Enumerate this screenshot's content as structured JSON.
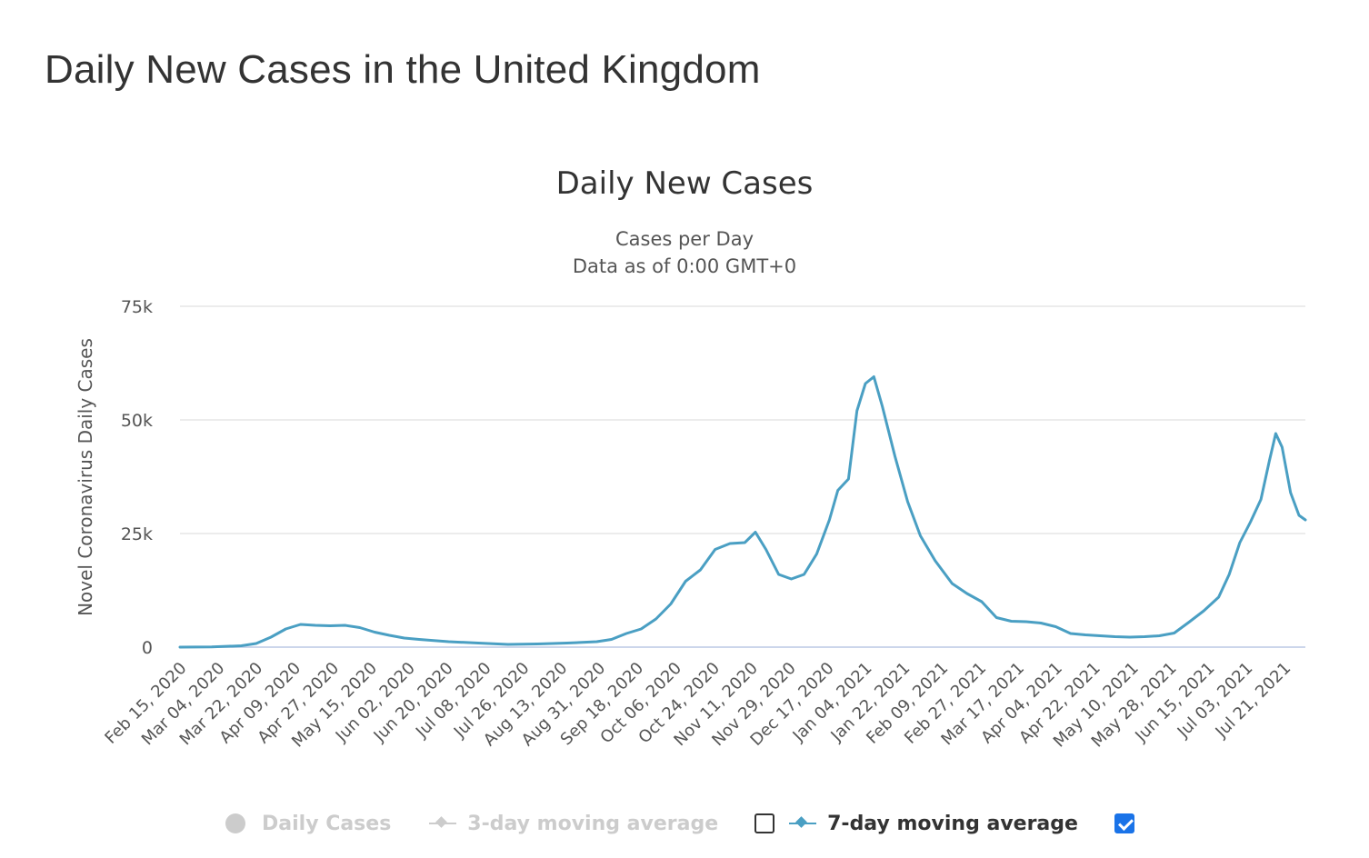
{
  "page": {
    "title": "Daily New Cases in the United Kingdom"
  },
  "chart_data": {
    "type": "line",
    "title": "Daily New Cases",
    "subtitle_lines": [
      "Cases per Day",
      "Data as of 0:00 GMT+0"
    ],
    "ylabel": "Novel Coronavirus Daily Cases",
    "xlabel": "",
    "ylim": [
      0,
      75000
    ],
    "y_ticks": [
      0,
      25000,
      50000,
      75000
    ],
    "y_tick_labels": [
      "0",
      "25k",
      "50k",
      "75k"
    ],
    "x_start": "2020-02-15",
    "x_end": "2021-07-31",
    "x_tick_labels": [
      "Feb 15, 2020",
      "Mar 04, 2020",
      "Mar 22, 2020",
      "Apr 09, 2020",
      "Apr 27, 2020",
      "May 15, 2020",
      "Jun 02, 2020",
      "Jun 20, 2020",
      "Jul 08, 2020",
      "Jul 26, 2020",
      "Aug 13, 2020",
      "Aug 31, 2020",
      "Sep 18, 2020",
      "Oct 06, 2020",
      "Oct 24, 2020",
      "Nov 11, 2020",
      "Nov 29, 2020",
      "Dec 17, 2020",
      "Jan 04, 2021",
      "Jan 22, 2021",
      "Feb 09, 2021",
      "Feb 27, 2021",
      "Mar 17, 2021",
      "Apr 04, 2021",
      "Apr 22, 2021",
      "May 10, 2021",
      "May 28, 2021",
      "Jun 15, 2021",
      "Jul 03, 2021",
      "Jul 21, 2021"
    ],
    "grid": true,
    "legend_position": "bottom",
    "series": [
      {
        "name": "7-day moving average",
        "color": "#4a9fc3",
        "points": [
          [
            "2020-02-15",
            0
          ],
          [
            "2020-03-01",
            50
          ],
          [
            "2020-03-15",
            300
          ],
          [
            "2020-03-22",
            800
          ],
          [
            "2020-03-29",
            2200
          ],
          [
            "2020-04-05",
            4000
          ],
          [
            "2020-04-12",
            5000
          ],
          [
            "2020-04-19",
            4800
          ],
          [
            "2020-04-26",
            4700
          ],
          [
            "2020-05-03",
            4800
          ],
          [
            "2020-05-10",
            4300
          ],
          [
            "2020-05-17",
            3300
          ],
          [
            "2020-05-24",
            2600
          ],
          [
            "2020-05-31",
            2000
          ],
          [
            "2020-06-07",
            1700
          ],
          [
            "2020-06-21",
            1200
          ],
          [
            "2020-07-05",
            900
          ],
          [
            "2020-07-19",
            600
          ],
          [
            "2020-08-02",
            700
          ],
          [
            "2020-08-16",
            900
          ],
          [
            "2020-08-30",
            1200
          ],
          [
            "2020-09-06",
            1700
          ],
          [
            "2020-09-13",
            3000
          ],
          [
            "2020-09-20",
            4000
          ],
          [
            "2020-09-27",
            6200
          ],
          [
            "2020-10-04",
            9500
          ],
          [
            "2020-10-11",
            14500
          ],
          [
            "2020-10-18",
            17000
          ],
          [
            "2020-10-25",
            21500
          ],
          [
            "2020-11-01",
            22800
          ],
          [
            "2020-11-08",
            23000
          ],
          [
            "2020-11-13",
            25300
          ],
          [
            "2020-11-18",
            21500
          ],
          [
            "2020-11-24",
            16000
          ],
          [
            "2020-11-30",
            15000
          ],
          [
            "2020-12-06",
            16000
          ],
          [
            "2020-12-12",
            20500
          ],
          [
            "2020-12-18",
            28000
          ],
          [
            "2020-12-22",
            34500
          ],
          [
            "2020-12-27",
            37000
          ],
          [
            "2020-12-31",
            52000
          ],
          [
            "2021-01-04",
            58000
          ],
          [
            "2021-01-08",
            59500
          ],
          [
            "2021-01-12",
            53000
          ],
          [
            "2021-01-18",
            42000
          ],
          [
            "2021-01-24",
            32000
          ],
          [
            "2021-01-30",
            24500
          ],
          [
            "2021-02-06",
            19000
          ],
          [
            "2021-02-14",
            14000
          ],
          [
            "2021-02-21",
            11800
          ],
          [
            "2021-02-28",
            10000
          ],
          [
            "2021-03-07",
            6500
          ],
          [
            "2021-03-14",
            5700
          ],
          [
            "2021-03-21",
            5600
          ],
          [
            "2021-03-28",
            5300
          ],
          [
            "2021-04-04",
            4500
          ],
          [
            "2021-04-11",
            3000
          ],
          [
            "2021-04-18",
            2700
          ],
          [
            "2021-04-25",
            2500
          ],
          [
            "2021-05-02",
            2300
          ],
          [
            "2021-05-09",
            2200
          ],
          [
            "2021-05-16",
            2300
          ],
          [
            "2021-05-23",
            2500
          ],
          [
            "2021-05-30",
            3100
          ],
          [
            "2021-06-06",
            5500
          ],
          [
            "2021-06-13",
            8000
          ],
          [
            "2021-06-20",
            11000
          ],
          [
            "2021-06-25",
            16000
          ],
          [
            "2021-06-30",
            23000
          ],
          [
            "2021-07-05",
            27500
          ],
          [
            "2021-07-10",
            32500
          ],
          [
            "2021-07-14",
            41000
          ],
          [
            "2021-07-17",
            47000
          ],
          [
            "2021-07-20",
            44000
          ],
          [
            "2021-07-24",
            34000
          ],
          [
            "2021-07-28",
            29000
          ],
          [
            "2021-07-31",
            28000
          ]
        ]
      }
    ]
  },
  "legend": {
    "daily_cases": "Daily Cases",
    "three_day": "3-day moving average",
    "seven_day": "7-day moving average"
  }
}
